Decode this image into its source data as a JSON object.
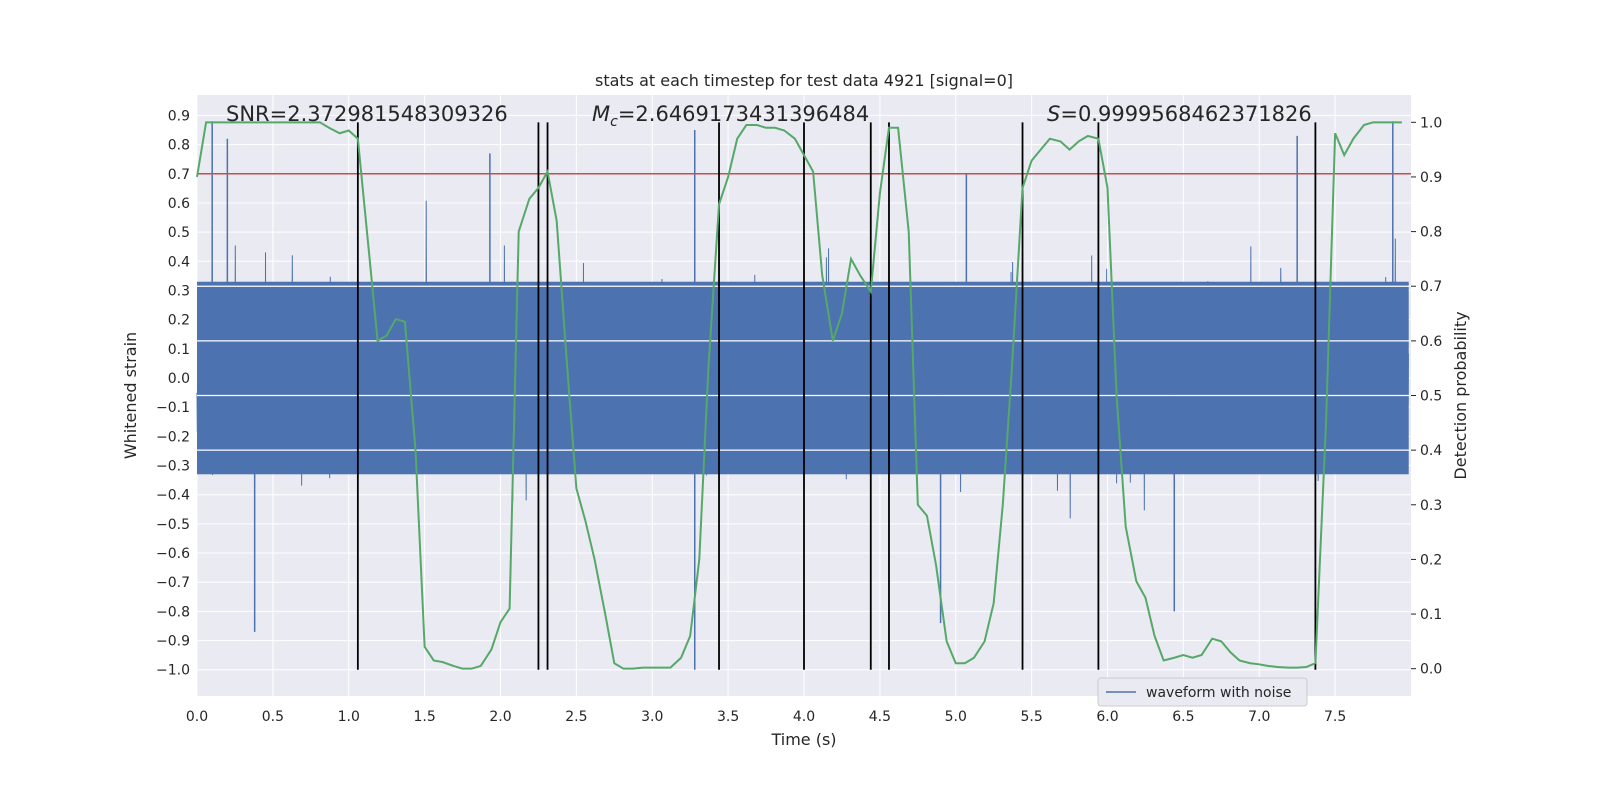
{
  "chart_data": {
    "type": "line",
    "title": "stats at each timestep for test data 4921 [signal=0]",
    "xlabel": "Time (s)",
    "ylabel_left": "Whitened strain",
    "ylabel_right": "Detection probability",
    "xlim": [
      0.0,
      8.0
    ],
    "ylim_left": [
      -1.09,
      0.97
    ],
    "ylim_right": [
      -0.05,
      1.05
    ],
    "x_ticks": [
      0.0,
      0.5,
      1.0,
      1.5,
      2.0,
      2.5,
      3.0,
      3.5,
      4.0,
      4.5,
      5.0,
      5.5,
      6.0,
      6.5,
      7.0,
      7.5
    ],
    "x_tick_labels": [
      "0.0",
      "0.5",
      "1.0",
      "1.5",
      "2.0",
      "2.5",
      "3.0",
      "3.5",
      "4.0",
      "4.5",
      "5.0",
      "5.5",
      "6.0",
      "6.5",
      "7.0",
      "7.5"
    ],
    "y_left_ticks": [
      0.9,
      0.8,
      0.7,
      0.6,
      0.5,
      0.4,
      0.3,
      0.2,
      0.1,
      0.0,
      -0.1,
      -0.2,
      -0.3,
      -0.4,
      -0.5,
      -0.6,
      -0.7,
      -0.8,
      -0.9,
      -1.0
    ],
    "y_left_tick_labels": [
      "0.9",
      "0.8",
      "0.7",
      "0.6",
      "0.5",
      "0.4",
      "0.3",
      "0.2",
      "0.1",
      "0.0",
      "−0.1",
      "−0.2",
      "−0.3",
      "−0.4",
      "−0.5",
      "−0.6",
      "−0.7",
      "−0.8",
      "−0.9",
      "−1.0"
    ],
    "y_right_ticks": [
      1.0,
      0.9,
      0.8,
      0.7,
      0.6,
      0.5,
      0.4,
      0.3,
      0.2,
      0.1,
      0.0
    ],
    "y_right_tick_labels": [
      "1.0",
      "0.9",
      "0.8",
      "0.7",
      "0.6",
      "0.5",
      "0.4",
      "0.3",
      "0.2",
      "0.1",
      "0.0"
    ],
    "annotations": {
      "snr": "SNR=2.372981548309326",
      "mc_symbol": "M",
      "mc_sub": "c",
      "mc_value": "=2.6469173431396484",
      "s_symbol": "S",
      "s_value": "=0.9999568462371826"
    },
    "threshold": {
      "value": 0.7,
      "axis": "left",
      "color": "#c44e52"
    },
    "vertical_markers": [
      1.06,
      2.25,
      2.31,
      3.44,
      4.0,
      4.44,
      4.56,
      5.44,
      5.94,
      7.37
    ],
    "waveform": {
      "name": "waveform with noise",
      "color": "#4c72b0",
      "sample_rate_hz": 512,
      "core_amplitude": 0.33,
      "notable_peaks": [
        {
          "x": 0.1,
          "y": 0.88
        },
        {
          "x": 0.2,
          "y": 0.82
        },
        {
          "x": 0.38,
          "y": -0.87
        },
        {
          "x": 1.93,
          "y": 0.77
        },
        {
          "x": 3.28,
          "y": -1.0
        },
        {
          "x": 3.28,
          "y": 0.85
        },
        {
          "x": 4.9,
          "y": -0.84
        },
        {
          "x": 5.07,
          "y": 0.7
        },
        {
          "x": 6.44,
          "y": -0.8
        },
        {
          "x": 7.25,
          "y": 0.83
        },
        {
          "x": 7.88,
          "y": 0.88
        }
      ]
    },
    "series": [
      {
        "name": "Detection probability",
        "axis": "right",
        "color": "#55a868",
        "x": [
          0.0,
          0.06,
          0.12,
          0.19,
          0.25,
          0.31,
          0.37,
          0.44,
          0.5,
          0.56,
          0.62,
          0.69,
          0.75,
          0.81,
          0.87,
          0.94,
          1.0,
          1.06,
          1.12,
          1.19,
          1.25,
          1.31,
          1.37,
          1.44,
          1.5,
          1.56,
          1.62,
          1.69,
          1.75,
          1.81,
          1.87,
          1.94,
          2.0,
          2.06,
          2.12,
          2.19,
          2.25,
          2.31,
          2.37,
          2.44,
          2.5,
          2.56,
          2.62,
          2.69,
          2.75,
          2.81,
          2.87,
          2.94,
          3.0,
          3.06,
          3.12,
          3.19,
          3.25,
          3.31,
          3.37,
          3.44,
          3.5,
          3.56,
          3.62,
          3.69,
          3.75,
          3.81,
          3.87,
          3.94,
          4.0,
          4.06,
          4.12,
          4.19,
          4.25,
          4.31,
          4.37,
          4.44,
          4.5,
          4.56,
          4.62,
          4.69,
          4.75,
          4.81,
          4.87,
          4.94,
          5.0,
          5.06,
          5.12,
          5.19,
          5.25,
          5.31,
          5.37,
          5.44,
          5.5,
          5.56,
          5.62,
          5.69,
          5.75,
          5.81,
          5.87,
          5.94,
          6.0,
          6.06,
          6.12,
          6.19,
          6.25,
          6.31,
          6.37,
          6.44,
          6.5,
          6.56,
          6.62,
          6.69,
          6.75,
          6.81,
          6.87,
          6.94,
          7.0,
          7.06,
          7.12,
          7.19,
          7.25,
          7.31,
          7.37,
          7.44,
          7.5,
          7.56,
          7.62,
          7.69,
          7.75,
          7.81,
          7.87,
          7.94
        ],
        "values": [
          0.9,
          1.0,
          1.0,
          1.0,
          1.0,
          1.0,
          1.0,
          1.0,
          1.0,
          1.0,
          1.0,
          1.0,
          1.0,
          1.0,
          0.99,
          0.98,
          0.985,
          0.97,
          0.8,
          0.6,
          0.61,
          0.64,
          0.635,
          0.4,
          0.04,
          0.015,
          0.012,
          0.005,
          0.0,
          0.0,
          0.005,
          0.035,
          0.085,
          0.11,
          0.8,
          0.86,
          0.88,
          0.91,
          0.82,
          0.55,
          0.33,
          0.27,
          0.2,
          0.1,
          0.01,
          0.0,
          0.0,
          0.002,
          0.002,
          0.002,
          0.002,
          0.02,
          0.06,
          0.2,
          0.55,
          0.85,
          0.9,
          0.97,
          0.995,
          0.995,
          0.99,
          0.99,
          0.985,
          0.97,
          0.94,
          0.91,
          0.72,
          0.6,
          0.65,
          0.75,
          0.72,
          0.69,
          0.87,
          0.99,
          0.99,
          0.8,
          0.3,
          0.28,
          0.19,
          0.05,
          0.01,
          0.01,
          0.02,
          0.05,
          0.12,
          0.3,
          0.55,
          0.88,
          0.93,
          0.95,
          0.97,
          0.965,
          0.95,
          0.965,
          0.975,
          0.97,
          0.88,
          0.5,
          0.26,
          0.16,
          0.13,
          0.06,
          0.015,
          0.02,
          0.025,
          0.02,
          0.025,
          0.055,
          0.05,
          0.03,
          0.015,
          0.01,
          0.008,
          0.005,
          0.003,
          0.002,
          0.002,
          0.003,
          0.01,
          0.45,
          0.98,
          0.94,
          0.97,
          0.995,
          1.0,
          1.0,
          1.0,
          1.0
        ]
      }
    ],
    "legend": {
      "placement": "lower-right",
      "entries": [
        "waveform with noise"
      ]
    }
  }
}
